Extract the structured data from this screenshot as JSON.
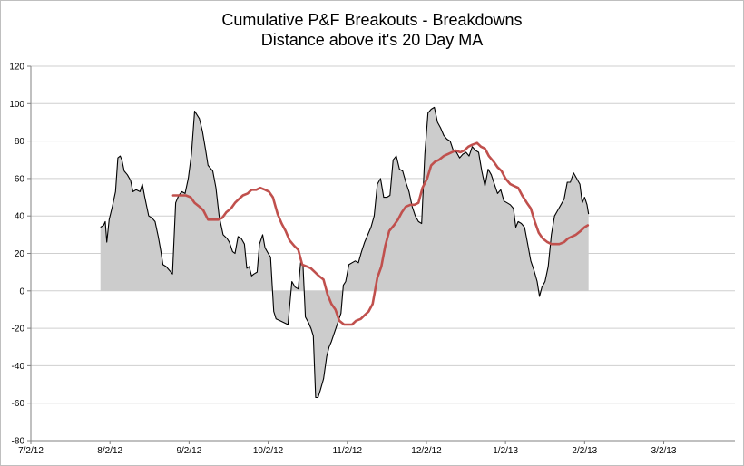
{
  "chart_data": {
    "type": "area",
    "title_line1": "Cumulative P&F Breakouts - Breakdowns",
    "title_line2": "Distance above it's 20 Day MA",
    "ylim": [
      -80,
      120
    ],
    "yticks": [
      120,
      100,
      80,
      60,
      40,
      20,
      0,
      -20,
      -40,
      -60,
      -80
    ],
    "xrange": [
      0,
      8.9
    ],
    "xticks": [
      {
        "label": "7/2/12",
        "pos": 0
      },
      {
        "label": "8/2/12",
        "pos": 1
      },
      {
        "label": "9/2/12",
        "pos": 2
      },
      {
        "label": "10/2/12",
        "pos": 3
      },
      {
        "label": "11/2/12",
        "pos": 4
      },
      {
        "label": "12/2/12",
        "pos": 5
      },
      {
        "label": "1/2/13",
        "pos": 6
      },
      {
        "label": "2/2/13",
        "pos": 7
      },
      {
        "label": "3/2/13",
        "pos": 8
      }
    ],
    "series": [
      {
        "name": "Cumulative P&F Breakouts - Breakdowns",
        "style": "area",
        "line_color": "#000000",
        "fill_color": "#cccccc",
        "points": [
          [
            0.88,
            34
          ],
          [
            0.92,
            35
          ],
          [
            0.94,
            37
          ],
          [
            0.96,
            26
          ],
          [
            0.99,
            38
          ],
          [
            1.03,
            45
          ],
          [
            1.07,
            53
          ],
          [
            1.1,
            71
          ],
          [
            1.13,
            72
          ],
          [
            1.15,
            70
          ],
          [
            1.18,
            64
          ],
          [
            1.22,
            62
          ],
          [
            1.26,
            59
          ],
          [
            1.29,
            53
          ],
          [
            1.33,
            54
          ],
          [
            1.38,
            53
          ],
          [
            1.41,
            57
          ],
          [
            1.44,
            50
          ],
          [
            1.49,
            40
          ],
          [
            1.53,
            39
          ],
          [
            1.57,
            37
          ],
          [
            1.61,
            29
          ],
          [
            1.64,
            22
          ],
          [
            1.67,
            14
          ],
          [
            1.71,
            13
          ],
          [
            1.75,
            11
          ],
          [
            1.79,
            9
          ],
          [
            1.83,
            47
          ],
          [
            1.87,
            51
          ],
          [
            1.91,
            53
          ],
          [
            1.95,
            52
          ],
          [
            1.99,
            60
          ],
          [
            2.03,
            73
          ],
          [
            2.07,
            96
          ],
          [
            2.13,
            92
          ],
          [
            2.17,
            85
          ],
          [
            2.21,
            75
          ],
          [
            2.24,
            67
          ],
          [
            2.3,
            64
          ],
          [
            2.34,
            55
          ],
          [
            2.38,
            40
          ],
          [
            2.43,
            30
          ],
          [
            2.48,
            28
          ],
          [
            2.51,
            26
          ],
          [
            2.55,
            21
          ],
          [
            2.58,
            20
          ],
          [
            2.62,
            29
          ],
          [
            2.66,
            28
          ],
          [
            2.7,
            25
          ],
          [
            2.73,
            12
          ],
          [
            2.76,
            13
          ],
          [
            2.79,
            8
          ],
          [
            2.82,
            9
          ],
          [
            2.86,
            10
          ],
          [
            2.89,
            25
          ],
          [
            2.93,
            30
          ],
          [
            2.96,
            23
          ],
          [
            3.0,
            20
          ],
          [
            3.03,
            18
          ],
          [
            3.07,
            -11
          ],
          [
            3.1,
            -15
          ],
          [
            3.15,
            -16
          ],
          [
            3.2,
            -17
          ],
          [
            3.25,
            -18
          ],
          [
            3.3,
            5
          ],
          [
            3.34,
            2
          ],
          [
            3.38,
            1
          ],
          [
            3.41,
            15
          ],
          [
            3.44,
            14
          ],
          [
            3.47,
            -14
          ],
          [
            3.51,
            -17
          ],
          [
            3.54,
            -20
          ],
          [
            3.57,
            -24
          ],
          [
            3.6,
            -57
          ],
          [
            3.63,
            -57
          ],
          [
            3.66,
            -53
          ],
          [
            3.7,
            -47
          ],
          [
            3.74,
            -35
          ],
          [
            3.77,
            -30
          ],
          [
            3.8,
            -27
          ],
          [
            3.84,
            -22
          ],
          [
            3.88,
            -17
          ],
          [
            3.92,
            -12
          ],
          [
            3.95,
            3
          ],
          [
            3.98,
            5
          ],
          [
            4.02,
            14
          ],
          [
            4.06,
            15
          ],
          [
            4.1,
            16
          ],
          [
            4.14,
            15
          ],
          [
            4.18,
            21
          ],
          [
            4.22,
            26
          ],
          [
            4.26,
            30
          ],
          [
            4.3,
            34
          ],
          [
            4.34,
            40
          ],
          [
            4.38,
            57
          ],
          [
            4.42,
            60
          ],
          [
            4.46,
            50
          ],
          [
            4.5,
            50
          ],
          [
            4.54,
            51
          ],
          [
            4.58,
            70
          ],
          [
            4.62,
            72
          ],
          [
            4.66,
            65
          ],
          [
            4.7,
            64
          ],
          [
            4.74,
            58
          ],
          [
            4.78,
            53
          ],
          [
            4.82,
            45
          ],
          [
            4.86,
            40
          ],
          [
            4.9,
            37
          ],
          [
            4.94,
            36
          ],
          [
            4.98,
            73
          ],
          [
            5.02,
            95
          ],
          [
            5.06,
            97
          ],
          [
            5.1,
            98
          ],
          [
            5.14,
            90
          ],
          [
            5.18,
            87
          ],
          [
            5.22,
            83
          ],
          [
            5.26,
            81
          ],
          [
            5.3,
            80
          ],
          [
            5.34,
            75
          ],
          [
            5.38,
            74
          ],
          [
            5.42,
            71
          ],
          [
            5.46,
            73
          ],
          [
            5.5,
            74
          ],
          [
            5.54,
            72
          ],
          [
            5.58,
            77
          ],
          [
            5.62,
            75
          ],
          [
            5.66,
            74
          ],
          [
            5.7,
            64
          ],
          [
            5.74,
            56
          ],
          [
            5.78,
            65
          ],
          [
            5.82,
            62
          ],
          [
            5.86,
            57
          ],
          [
            5.9,
            52
          ],
          [
            5.94,
            54
          ],
          [
            5.98,
            48
          ],
          [
            6.02,
            47
          ],
          [
            6.06,
            46
          ],
          [
            6.1,
            44
          ],
          [
            6.13,
            34
          ],
          [
            6.16,
            37
          ],
          [
            6.2,
            36
          ],
          [
            6.24,
            34
          ],
          [
            6.28,
            25
          ],
          [
            6.32,
            16
          ],
          [
            6.36,
            11
          ],
          [
            6.4,
            5
          ],
          [
            6.43,
            -3
          ],
          [
            6.46,
            2
          ],
          [
            6.5,
            5
          ],
          [
            6.54,
            13
          ],
          [
            6.58,
            30
          ],
          [
            6.62,
            40
          ],
          [
            6.66,
            43
          ],
          [
            6.7,
            46
          ],
          [
            6.74,
            49
          ],
          [
            6.78,
            58
          ],
          [
            6.82,
            58
          ],
          [
            6.86,
            63
          ],
          [
            6.9,
            60
          ],
          [
            6.94,
            57
          ],
          [
            6.97,
            47
          ],
          [
            7.0,
            50
          ],
          [
            7.03,
            46
          ],
          [
            7.05,
            41
          ]
        ]
      },
      {
        "name": "20 Day MA",
        "style": "line",
        "line_color": "#c0504d",
        "points": [
          [
            1.8,
            51
          ],
          [
            1.88,
            51
          ],
          [
            1.96,
            51
          ],
          [
            2.02,
            50
          ],
          [
            2.07,
            47
          ],
          [
            2.13,
            45
          ],
          [
            2.18,
            43
          ],
          [
            2.24,
            38
          ],
          [
            2.3,
            38
          ],
          [
            2.37,
            38
          ],
          [
            2.42,
            39
          ],
          [
            2.47,
            42
          ],
          [
            2.53,
            44
          ],
          [
            2.58,
            47
          ],
          [
            2.63,
            49
          ],
          [
            2.68,
            51
          ],
          [
            2.74,
            52
          ],
          [
            2.79,
            54
          ],
          [
            2.85,
            54
          ],
          [
            2.9,
            55
          ],
          [
            2.96,
            54
          ],
          [
            3.01,
            53
          ],
          [
            3.06,
            50
          ],
          [
            3.12,
            41
          ],
          [
            3.17,
            36
          ],
          [
            3.22,
            32
          ],
          [
            3.27,
            27
          ],
          [
            3.33,
            24
          ],
          [
            3.38,
            22
          ],
          [
            3.43,
            14
          ],
          [
            3.49,
            13
          ],
          [
            3.54,
            12
          ],
          [
            3.59,
            10
          ],
          [
            3.64,
            8
          ],
          [
            3.7,
            6
          ],
          [
            3.75,
            -2
          ],
          [
            3.8,
            -7
          ],
          [
            3.85,
            -10
          ],
          [
            3.9,
            -16
          ],
          [
            3.96,
            -18
          ],
          [
            4.01,
            -18
          ],
          [
            4.06,
            -18
          ],
          [
            4.11,
            -16
          ],
          [
            4.17,
            -15
          ],
          [
            4.22,
            -13
          ],
          [
            4.27,
            -11
          ],
          [
            4.32,
            -7
          ],
          [
            4.38,
            7
          ],
          [
            4.43,
            13
          ],
          [
            4.48,
            24
          ],
          [
            4.53,
            32
          ],
          [
            4.59,
            35
          ],
          [
            4.64,
            38
          ],
          [
            4.69,
            42
          ],
          [
            4.74,
            45
          ],
          [
            4.8,
            46
          ],
          [
            4.85,
            46
          ],
          [
            4.9,
            47
          ],
          [
            4.95,
            55
          ],
          [
            5.01,
            60
          ],
          [
            5.06,
            67
          ],
          [
            5.11,
            69
          ],
          [
            5.16,
            70
          ],
          [
            5.22,
            72
          ],
          [
            5.27,
            73
          ],
          [
            5.32,
            74
          ],
          [
            5.37,
            75
          ],
          [
            5.43,
            74
          ],
          [
            5.48,
            75
          ],
          [
            5.53,
            77
          ],
          [
            5.58,
            78
          ],
          [
            5.64,
            79
          ],
          [
            5.69,
            77
          ],
          [
            5.74,
            76
          ],
          [
            5.79,
            72
          ],
          [
            5.85,
            69
          ],
          [
            5.9,
            66
          ],
          [
            5.95,
            64
          ],
          [
            6.0,
            60
          ],
          [
            6.06,
            57
          ],
          [
            6.11,
            56
          ],
          [
            6.16,
            55
          ],
          [
            6.21,
            51
          ],
          [
            6.27,
            47
          ],
          [
            6.32,
            44
          ],
          [
            6.37,
            37
          ],
          [
            6.42,
            31
          ],
          [
            6.47,
            28
          ],
          [
            6.53,
            26
          ],
          [
            6.58,
            25
          ],
          [
            6.63,
            25
          ],
          [
            6.68,
            25
          ],
          [
            6.74,
            26
          ],
          [
            6.79,
            28
          ],
          [
            6.84,
            29
          ],
          [
            6.89,
            30
          ],
          [
            6.95,
            32
          ],
          [
            7.0,
            34
          ],
          [
            7.04,
            35
          ]
        ]
      }
    ]
  }
}
